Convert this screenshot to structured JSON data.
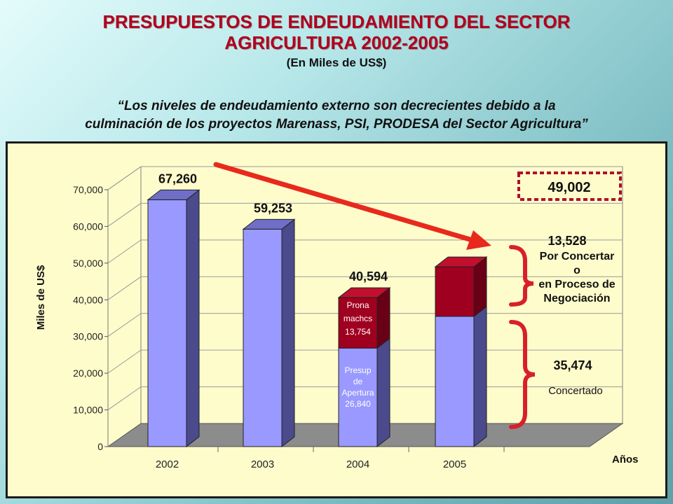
{
  "header": {
    "title_line1": "PRESUPUESTOS DE ENDEUDAMIENTO DEL SECTOR",
    "title_line2": "AGRICULTURA 2002-2005",
    "subtitle": "(En Miles de US$)",
    "quote_line1": "“Los niveles de endeudamiento externo son decrecientes debido a la",
    "quote_line2": "culminación de los proyectos Marenass, PSI,  PRODESA del Sector Agricultura”"
  },
  "colors": {
    "bar_front": "#9999ff",
    "bar_side": "#4a4a8c",
    "bar_top": "#6f6fc8",
    "seg_dark": "#a00020",
    "accent_red": "#e8291c",
    "panel_bg": "#fffccc"
  },
  "chart_data": {
    "type": "bar",
    "ylabel": "Miles de US$",
    "xlabel": "Años",
    "ylim": [
      0,
      70000
    ],
    "yticks": [
      "0",
      "10,000",
      "20,000",
      "30,000",
      "40,000",
      "50,000",
      "60,000",
      "70,000"
    ],
    "categories": [
      "2002",
      "2003",
      "2004",
      "2005"
    ],
    "bars": [
      {
        "year": "2002",
        "total": 67260,
        "total_label": "67,260",
        "segments": [
          67260
        ]
      },
      {
        "year": "2003",
        "total": 59253,
        "total_label": "59,253",
        "segments": [
          59253
        ]
      },
      {
        "year": "2004",
        "total": 40594,
        "total_label": "40,594",
        "segments": [
          26840,
          13754
        ]
      },
      {
        "year": "2005",
        "total": 49002,
        "total_label": "49,002",
        "segments": [
          35474,
          13528
        ]
      }
    ],
    "annotations": {
      "seg2004_top_lines": [
        "Prona",
        "machcs",
        "13,754"
      ],
      "seg2004_bottom_lines": [
        "Presup",
        "de",
        "Apertura",
        "26,840"
      ],
      "boxed_total": "49,002",
      "por_concertar_value": "13,528",
      "por_concertar_lines": [
        "Por Concertar",
        "o",
        "en Proceso de",
        "Negociación"
      ],
      "concertado_value": "35,474",
      "concertado_label": "Concertado"
    }
  }
}
